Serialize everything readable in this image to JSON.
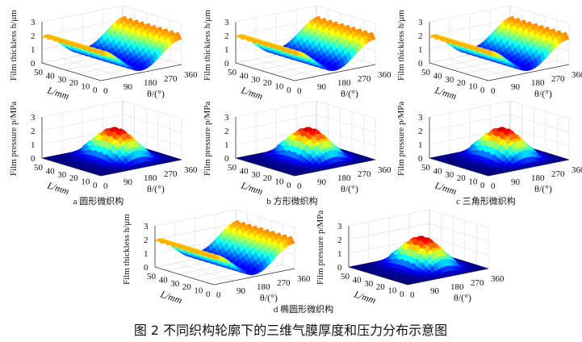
{
  "figure_caption": "图 2  不同织构轮廓下的三维气膜厚度和压力分布示意图",
  "subcaptions": [
    "a  圆形微织构",
    "b  方形微织构",
    "c  三角形微织构",
    "d  椭圆形微织构"
  ],
  "chart_data": [
    {
      "panel": "a",
      "type": "surface",
      "quantity": "thickness",
      "zlabel": "Film thickless h/μm",
      "xlabel": "θ/(°)",
      "ylabel": "L/mm",
      "zticks": [
        "0",
        "1",
        "2",
        "3"
      ],
      "xticks": [
        "0",
        "90",
        "180",
        "270",
        "360"
      ],
      "yticks": [
        "50",
        "40",
        "30",
        "20",
        "10",
        "0"
      ],
      "zlim": [
        0,
        3
      ],
      "xlim": [
        0,
        360
      ],
      "ylim": [
        0,
        50
      ],
      "zmax_approx": 2.7
    },
    {
      "panel": "b",
      "type": "surface",
      "quantity": "thickness",
      "zlabel": "Film thickless h/μm",
      "xlabel": "θ/(°)",
      "ylabel": "L/mm",
      "zticks": [
        "0",
        "1",
        "2",
        "3"
      ],
      "xticks": [
        "0",
        "90",
        "180",
        "270",
        "360"
      ],
      "yticks": [
        "50",
        "40",
        "30",
        "20",
        "10",
        "0"
      ],
      "zlim": [
        0,
        3
      ],
      "xlim": [
        0,
        360
      ],
      "ylim": [
        0,
        50
      ],
      "zmax_approx": 2.7
    },
    {
      "panel": "c",
      "type": "surface",
      "quantity": "thickness",
      "zlabel": "Film thickless h/μm",
      "xlabel": "θ/(°)",
      "ylabel": "L/mm",
      "zticks": [
        "0",
        "1",
        "2",
        "3"
      ],
      "xticks": [
        "0",
        "90",
        "180",
        "270",
        "360"
      ],
      "yticks": [
        "50",
        "40",
        "30",
        "20",
        "10",
        "0"
      ],
      "zlim": [
        0,
        3
      ],
      "xlim": [
        0,
        360
      ],
      "ylim": [
        0,
        50
      ],
      "zmax_approx": 2.7
    },
    {
      "panel": "a",
      "type": "surface",
      "quantity": "pressure",
      "zlabel": "Film pressure p/MPa",
      "xlabel": "θ/(°)",
      "ylabel": "L/mm",
      "zticks": [
        "0",
        "1",
        "2",
        "3"
      ],
      "xticks": [
        "0",
        "90",
        "180",
        "270",
        "360"
      ],
      "yticks": [
        "50",
        "40",
        "30",
        "20",
        "10",
        "0"
      ],
      "zlim": [
        0,
        3
      ],
      "xlim": [
        0,
        360
      ],
      "ylim": [
        0,
        50
      ],
      "zmax_approx": 2.3
    },
    {
      "panel": "b",
      "type": "surface",
      "quantity": "pressure",
      "zlabel": "Film pressure p/MPa",
      "xlabel": "θ/(°)",
      "ylabel": "L/mm",
      "zticks": [
        "0",
        "1",
        "2",
        "3"
      ],
      "xticks": [
        "0",
        "90",
        "180",
        "270",
        "360"
      ],
      "yticks": [
        "50",
        "40",
        "30",
        "20",
        "10",
        "0"
      ],
      "zlim": [
        0,
        3
      ],
      "xlim": [
        0,
        360
      ],
      "ylim": [
        0,
        50
      ],
      "zmax_approx": 2.3
    },
    {
      "panel": "c",
      "type": "surface",
      "quantity": "pressure",
      "zlabel": "Film pressure p/MPa",
      "xlabel": "θ/(°)",
      "ylabel": "L/mm",
      "zticks": [
        "0",
        "1",
        "2",
        "3"
      ],
      "xticks": [
        "0",
        "90",
        "180",
        "270",
        "360"
      ],
      "yticks": [
        "50",
        "40",
        "30",
        "20",
        "10",
        "0"
      ],
      "zlim": [
        0,
        3
      ],
      "xlim": [
        0,
        360
      ],
      "ylim": [
        0,
        50
      ],
      "zmax_approx": 2.3
    },
    {
      "panel": "d",
      "type": "surface",
      "quantity": "thickness",
      "zlabel": "Film thickless h/μm",
      "xlabel": "θ/(°)",
      "ylabel": "L/mm",
      "zticks": [
        "0",
        "1",
        "2",
        "3"
      ],
      "xticks": [
        "0",
        "90",
        "180",
        "270",
        "360"
      ],
      "yticks": [
        "50",
        "40",
        "30",
        "20",
        "10",
        "0"
      ],
      "zlim": [
        0,
        3
      ],
      "xlim": [
        0,
        360
      ],
      "ylim": [
        0,
        50
      ],
      "zmax_approx": 2.7
    },
    {
      "panel": "d",
      "type": "surface",
      "quantity": "pressure",
      "zlabel": "Film pressure p/MPa",
      "xlabel": "θ/(°)",
      "ylabel": "L/mm",
      "zticks": [
        "0",
        "1",
        "2",
        "3"
      ],
      "xticks": [
        "0",
        "90",
        "180",
        "270",
        "360"
      ],
      "yticks": [
        "50",
        "40",
        "30",
        "20",
        "10",
        "0"
      ],
      "zlim": [
        0,
        3
      ],
      "xlim": [
        0,
        360
      ],
      "ylim": [
        0,
        50
      ],
      "zmax_approx": 2.3
    }
  ],
  "colormap": "jet"
}
